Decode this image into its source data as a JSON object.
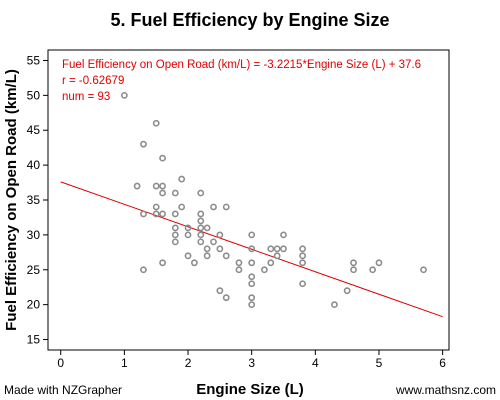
{
  "chart_data": {
    "type": "scatter",
    "title": "5. Fuel Efficiency by Engine Size",
    "xlabel": "Engine Size (L)",
    "ylabel": "Fuel Efficiency on Open Road (km/L)",
    "xlim": [
      -0.2,
      6.1
    ],
    "ylim": [
      13.5,
      56.5
    ],
    "xticks": [
      "0",
      "1",
      "2",
      "3",
      "4",
      "5",
      "6"
    ],
    "yticks": [
      "15",
      "20",
      "25",
      "30",
      "35",
      "40",
      "45",
      "50",
      "55"
    ],
    "grid": false,
    "fit_line": {
      "slope": -3.2215,
      "intercept": 37.6,
      "color": "#e00000"
    },
    "annotations": [
      "Fuel Efficiency on Open Road (km/L) = -3.2215*Engine Size (L) + 37.6",
      "r = -0.62679",
      "num = 93"
    ],
    "points": [
      [
        1.0,
        50
      ],
      [
        1.2,
        37
      ],
      [
        1.3,
        43
      ],
      [
        1.3,
        33
      ],
      [
        1.3,
        25
      ],
      [
        1.5,
        46
      ],
      [
        1.5,
        37
      ],
      [
        1.5,
        34
      ],
      [
        1.5,
        33
      ],
      [
        1.6,
        41
      ],
      [
        1.6,
        37
      ],
      [
        1.6,
        36
      ],
      [
        1.6,
        33
      ],
      [
        1.6,
        26
      ],
      [
        1.8,
        36
      ],
      [
        1.8,
        33
      ],
      [
        1.8,
        31
      ],
      [
        1.8,
        30
      ],
      [
        1.8,
        29
      ],
      [
        1.9,
        38
      ],
      [
        1.9,
        34
      ],
      [
        2.0,
        31
      ],
      [
        2.0,
        30
      ],
      [
        2.0,
        27
      ],
      [
        2.1,
        26
      ],
      [
        2.2,
        36
      ],
      [
        2.2,
        33
      ],
      [
        2.2,
        32
      ],
      [
        2.2,
        31
      ],
      [
        2.2,
        30
      ],
      [
        2.2,
        29
      ],
      [
        2.3,
        31
      ],
      [
        2.3,
        28
      ],
      [
        2.3,
        27
      ],
      [
        2.4,
        34
      ],
      [
        2.4,
        29
      ],
      [
        2.5,
        30
      ],
      [
        2.5,
        28
      ],
      [
        2.5,
        22
      ],
      [
        2.6,
        34
      ],
      [
        2.6,
        27
      ],
      [
        2.6,
        21
      ],
      [
        2.8,
        26
      ],
      [
        2.8,
        25
      ],
      [
        3.0,
        30
      ],
      [
        3.0,
        28
      ],
      [
        3.0,
        26
      ],
      [
        3.0,
        24
      ],
      [
        3.0,
        23
      ],
      [
        3.0,
        21
      ],
      [
        3.0,
        20
      ],
      [
        3.2,
        25
      ],
      [
        3.3,
        28
      ],
      [
        3.3,
        26
      ],
      [
        3.4,
        28
      ],
      [
        3.4,
        27
      ],
      [
        3.5,
        30
      ],
      [
        3.5,
        28
      ],
      [
        3.8,
        28
      ],
      [
        3.8,
        27
      ],
      [
        3.8,
        26
      ],
      [
        3.8,
        23
      ],
      [
        4.3,
        20
      ],
      [
        4.5,
        22
      ],
      [
        4.6,
        26
      ],
      [
        4.6,
        25
      ],
      [
        4.9,
        25
      ],
      [
        5.0,
        26
      ],
      [
        5.7,
        25
      ]
    ],
    "point_color": "#8c8c8c",
    "axis_color": "#000000"
  },
  "footer": {
    "left": "Made with NZGrapher",
    "right": "www.mathsnz.com"
  }
}
